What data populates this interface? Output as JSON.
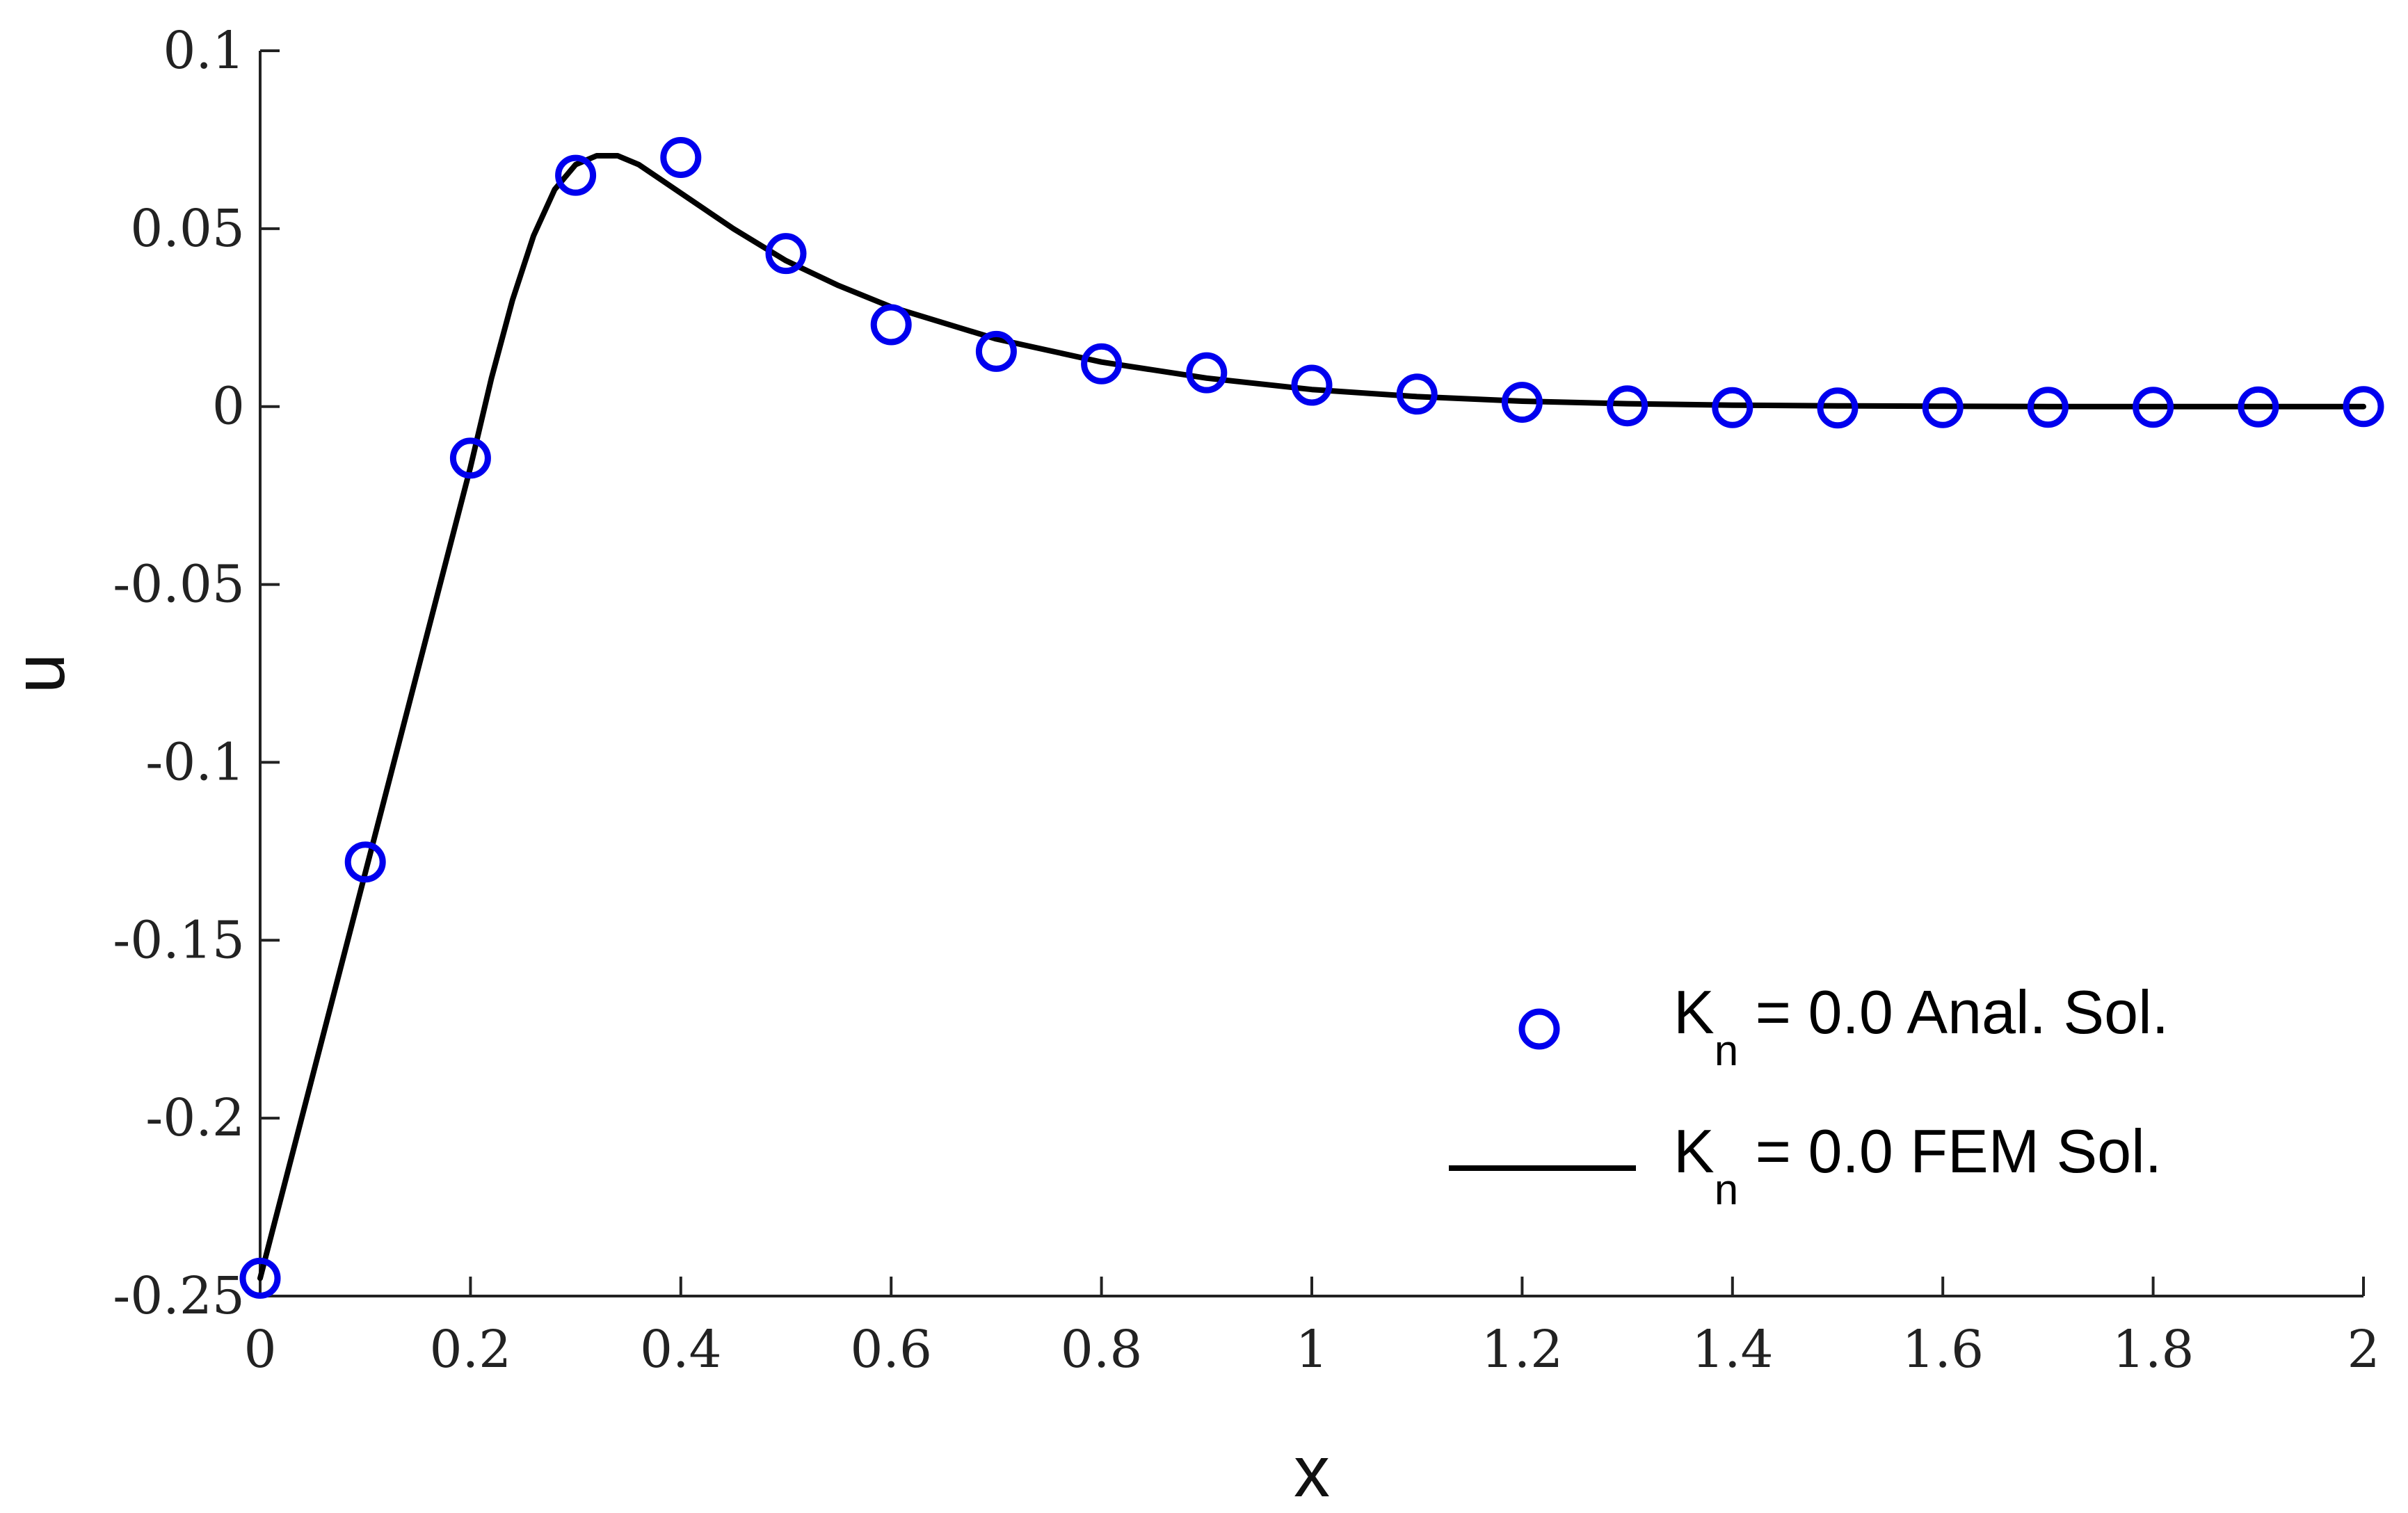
{
  "chart_data": {
    "type": "line",
    "title": "",
    "xlabel": "x",
    "ylabel": "u",
    "xlim": [
      0,
      2
    ],
    "ylim": [
      -0.25,
      0.1
    ],
    "grid": false,
    "legend_placement": "bottom-right",
    "x_ticks": [
      "0",
      "0.2",
      "0.4",
      "0.6",
      "0.8",
      "1",
      "1.2",
      "1.4",
      "1.6",
      "1.8",
      "2"
    ],
    "y_ticks": [
      "-0.25",
      "-0.2",
      "-0.15",
      "-0.1",
      "-0.05",
      "0",
      "0.05",
      "0.1"
    ],
    "series": [
      {
        "legend_base": "K",
        "legend_sub": "n",
        "legend_rest": " = 0.0 Anal. Sol.",
        "style": "markers",
        "marker": "circle",
        "color": "#0000EE",
        "x": [
          0,
          0.1,
          0.2,
          0.3,
          0.4,
          0.5,
          0.6,
          0.7,
          0.8,
          0.9,
          1.0,
          1.1,
          1.2,
          1.3,
          1.4,
          1.5,
          1.6,
          1.7,
          1.8,
          1.9,
          2.0
        ],
        "y": [
          -0.245,
          -0.128,
          -0.0145,
          0.065,
          0.07,
          0.043,
          0.023,
          0.0155,
          0.012,
          0.0095,
          0.006,
          0.0035,
          0.0012,
          0.0002,
          -0.0003,
          -0.0004,
          -0.0003,
          -0.0002,
          -0.0002,
          -0.0001,
          0.0
        ]
      },
      {
        "legend_base": "K",
        "legend_sub": "n",
        "legend_rest": " = 0.0 FEM Sol.",
        "style": "line",
        "color": "#000000",
        "x": [
          0,
          0.05,
          0.1,
          0.15,
          0.2,
          0.22,
          0.24,
          0.26,
          0.28,
          0.3,
          0.32,
          0.34,
          0.36,
          0.38,
          0.4,
          0.45,
          0.5,
          0.55,
          0.6,
          0.7,
          0.8,
          0.9,
          1.0,
          1.1,
          1.2,
          1.3,
          1.4,
          1.5,
          1.6,
          1.7,
          1.8,
          1.9,
          2.0
        ],
        "y": [
          -0.245,
          -0.188,
          -0.131,
          -0.074,
          -0.017,
          0.008,
          0.03,
          0.048,
          0.061,
          0.068,
          0.0705,
          0.0705,
          0.068,
          0.064,
          0.06,
          0.05,
          0.041,
          0.034,
          0.028,
          0.019,
          0.0125,
          0.008,
          0.0048,
          0.0028,
          0.0015,
          0.0008,
          0.0004,
          0.0002,
          0.0001,
          0.0,
          0.0,
          0.0,
          0.0
        ]
      }
    ]
  }
}
